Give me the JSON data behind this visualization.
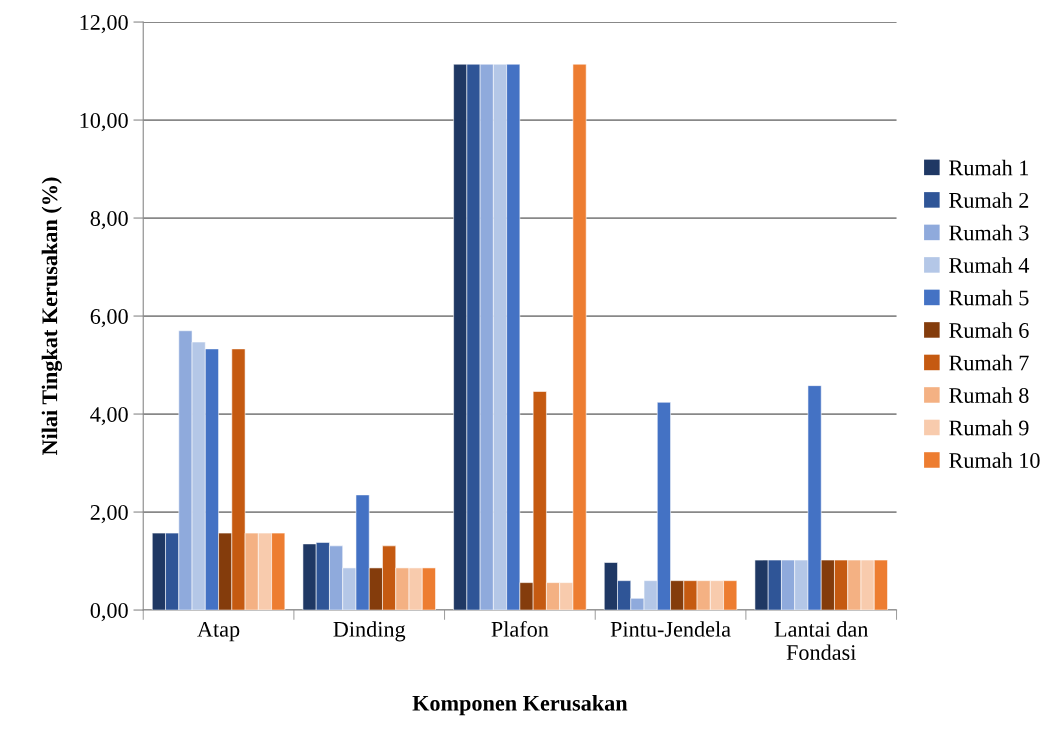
{
  "chart_data": {
    "type": "bar",
    "xlabel": "Komponen Kerusakan",
    "ylabel": "Nilai Tingkat Kerusakan (%)",
    "categories": [
      "Atap",
      "Dinding",
      "Plafon",
      "Pintu-Jendela",
      "Lantai dan\nFondasi"
    ],
    "series": [
      {
        "name": "Rumah 1",
        "color": "#1f3864",
        "values": [
          1.57,
          1.35,
          11.14,
          0.97,
          1.02
        ]
      },
      {
        "name": "Rumah 2",
        "color": "#2f5597",
        "values": [
          1.57,
          1.38,
          11.14,
          0.6,
          1.02
        ]
      },
      {
        "name": "Rumah 3",
        "color": "#8faadc",
        "values": [
          5.7,
          1.31,
          11.14,
          0.24,
          1.02
        ]
      },
      {
        "name": "Rumah 4",
        "color": "#b4c7e7",
        "values": [
          5.47,
          0.86,
          11.14,
          0.6,
          1.02
        ]
      },
      {
        "name": "Rumah 5",
        "color": "#4472c4",
        "values": [
          5.33,
          2.35,
          11.14,
          4.24,
          4.58
        ]
      },
      {
        "name": "Rumah 6",
        "color": "#843c0c",
        "values": [
          1.57,
          0.86,
          0.56,
          0.6,
          1.02
        ]
      },
      {
        "name": "Rumah 7",
        "color": "#c55a11",
        "values": [
          5.33,
          1.31,
          4.46,
          0.6,
          1.02
        ]
      },
      {
        "name": "Rumah 8",
        "color": "#f4b183",
        "values": [
          1.57,
          0.86,
          0.56,
          0.6,
          1.02
        ]
      },
      {
        "name": "Rumah 9",
        "color": "#f8cbad",
        "values": [
          1.57,
          0.86,
          0.56,
          0.6,
          1.02
        ]
      },
      {
        "name": "Rumah 10",
        "color": "#ed7d31",
        "values": [
          1.57,
          0.86,
          11.14,
          0.6,
          1.02
        ]
      }
    ],
    "ylim": [
      0,
      12
    ],
    "yticks": [
      {
        "value": 0,
        "label": "0,00"
      },
      {
        "value": 2,
        "label": "2,00"
      },
      {
        "value": 4,
        "label": "4,00"
      },
      {
        "value": 6,
        "label": "6,00"
      },
      {
        "value": 8,
        "label": "8,00"
      },
      {
        "value": 10,
        "label": "10,00"
      },
      {
        "value": 12,
        "label": "12,00"
      }
    ],
    "grid": "y",
    "legend": "right"
  }
}
